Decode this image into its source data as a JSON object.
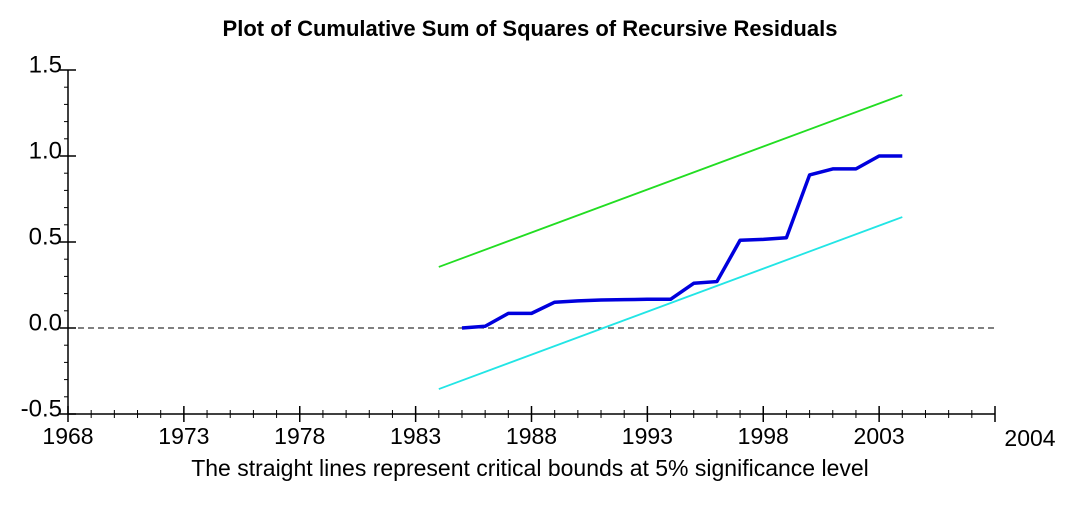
{
  "chart_data": {
    "type": "line",
    "title": "Plot of Cumulative Sum of Squares of Recursive Residuals",
    "footnote": "The straight lines represent critical bounds at 5% significance level",
    "x_end_label": "2004",
    "xlim": [
      1968,
      2008
    ],
    "xticks": [
      1968,
      1973,
      1978,
      1983,
      1988,
      1993,
      1998,
      2003
    ],
    "ylim": [
      -0.5,
      1.5
    ],
    "yticks": [
      -0.5,
      {
        "value": 0,
        "label": "0.0"
      },
      0.5,
      {
        "value": 1,
        "label": "1.0"
      },
      1.5
    ],
    "reference_line": 0,
    "series": [
      {
        "color": "#22dd22",
        "x": [
          1984,
          2004
        ],
        "values": [
          0.355,
          1.355
        ]
      },
      {
        "color": "#22e5e5",
        "x": [
          1984,
          2004
        ],
        "values": [
          -0.355,
          0.645
        ]
      },
      {
        "color": "#0000dd",
        "x": [
          1985,
          1986,
          1987,
          1988,
          1989,
          1990,
          1991,
          1992,
          1993,
          1994,
          1995,
          1996,
          1997,
          1998,
          1999,
          2000,
          2001,
          2002,
          2003,
          2004
        ],
        "values": [
          0.0,
          0.01,
          0.085,
          0.085,
          0.15,
          0.158,
          0.163,
          0.165,
          0.167,
          0.167,
          0.26,
          0.27,
          0.51,
          0.515,
          0.525,
          0.89,
          0.925,
          0.925,
          1.0,
          1.0
        ]
      }
    ]
  }
}
